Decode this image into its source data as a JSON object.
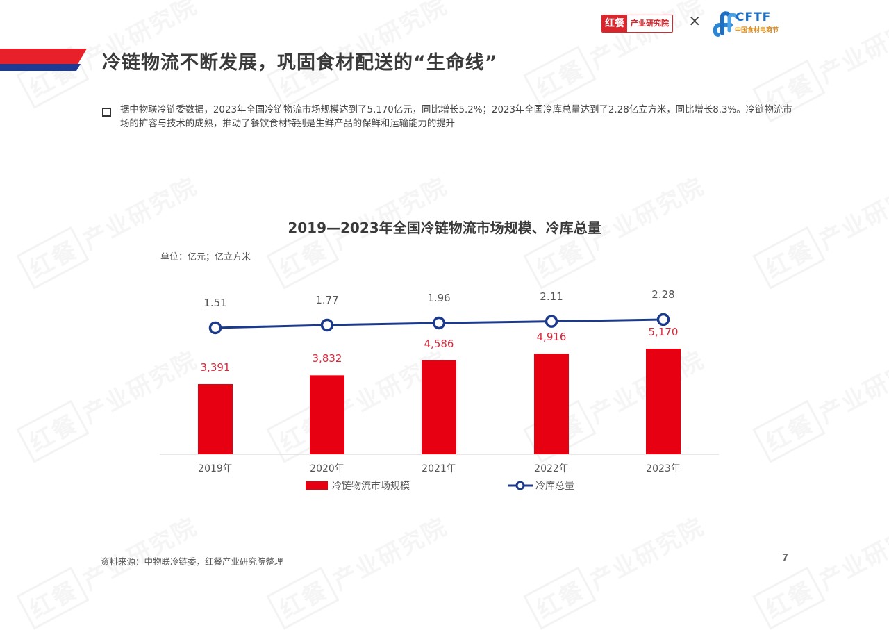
{
  "header": {
    "title": "冷链物流不断发展，巩固食材配送的“生命线”",
    "logo_left_mark": "红餐",
    "logo_left_text": "产业研究院",
    "logo_separator": "×",
    "logo_right_text": "CFTF",
    "logo_right_subtext": "中国食材电商节"
  },
  "description": "据中物联冷链委数据，2023年全国冷链物流市场规模达到了5,170亿元，同比增长5.2%；2023年全国冷库总量达到了2.28亿立方米，同比增长8.3%。冷链物流市场的扩容与技术的成熟，推动了餐饮食材特别是生鲜产品的保鲜和运输能力的提升",
  "watermark": {
    "mark": "红餐",
    "text": "产业研究院"
  },
  "colors": {
    "bar": "#e60012",
    "line": "#1c3a8c",
    "title_bar_red": "#e8202a",
    "title_bar_blue": "#1f3a93"
  },
  "chart_data": {
    "type": "bar+line",
    "title": "2019—2023年全国冷链物流市场规模、冷库总量",
    "unit_label": "单位：亿元；亿立方米",
    "categories": [
      "2019年",
      "2020年",
      "2021年",
      "2022年",
      "2023年"
    ],
    "series": [
      {
        "name": "冷链物流市场规模",
        "type": "bar",
        "unit": "亿元",
        "values": [
          3391,
          3832,
          4586,
          4916,
          5170
        ],
        "labels": [
          "3,391",
          "3,832",
          "4,586",
          "4,916",
          "5,170"
        ]
      },
      {
        "name": "冷库总量",
        "type": "line",
        "unit": "亿立方米",
        "values": [
          1.51,
          1.77,
          1.96,
          2.11,
          2.28
        ],
        "labels": [
          "1.51",
          "1.77",
          "1.96",
          "2.11",
          "2.28"
        ]
      }
    ],
    "legend_position": "bottom",
    "grid": false
  },
  "footer": {
    "source": "资料来源：中物联冷链委，红餐产业研究院整理",
    "page_number": "7"
  }
}
